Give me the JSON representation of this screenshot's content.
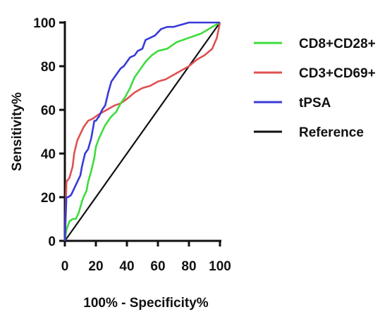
{
  "chart_data": {
    "type": "line",
    "title": "",
    "xlabel": "100% - Specificity%",
    "ylabel": "Sensitivity%",
    "xlim": [
      0,
      100
    ],
    "ylim": [
      0,
      100
    ],
    "xticks": [
      0,
      20,
      40,
      60,
      80,
      100
    ],
    "yticks": [
      0,
      20,
      40,
      60,
      80,
      100
    ],
    "grid": false,
    "legend_position": "right",
    "series": [
      {
        "name": "CD8+CD28+",
        "color": "#3ddc3d",
        "x": [
          0,
          1,
          3,
          5,
          7,
          9,
          11,
          12,
          14,
          15,
          17,
          19,
          20,
          22,
          24,
          26,
          28,
          30,
          33,
          36,
          39,
          42,
          45,
          48,
          52,
          56,
          60,
          66,
          72,
          80,
          88,
          95,
          100
        ],
        "y": [
          0,
          5,
          9,
          10,
          10,
          13,
          18,
          20,
          23,
          27,
          32,
          38,
          43,
          47,
          50,
          53,
          55,
          57,
          59,
          63,
          66,
          70,
          75,
          78,
          82,
          85,
          87,
          88,
          91,
          93,
          95,
          98,
          100
        ]
      },
      {
        "name": "CD3+CD69+",
        "color": "#e05050",
        "x": [
          0,
          1,
          3,
          5,
          6,
          8,
          10,
          12,
          15,
          18,
          22,
          27,
          32,
          36,
          40,
          45,
          50,
          55,
          60,
          65,
          70,
          75,
          80,
          85,
          90,
          95,
          98,
          100
        ],
        "y": [
          0,
          27,
          29,
          34,
          40,
          46,
          49,
          52,
          55,
          56,
          58,
          60,
          62,
          63,
          65,
          68,
          70,
          71,
          73,
          74,
          76,
          78,
          80,
          83,
          85,
          88,
          93,
          100
        ]
      },
      {
        "name": "tPSA",
        "color": "#3a3ad8",
        "x": [
          0,
          1,
          2,
          4,
          6,
          8,
          10,
          11,
          13,
          15,
          17,
          18,
          19,
          20,
          22,
          24,
          26,
          28,
          30,
          32,
          34,
          36,
          38,
          40,
          42,
          45,
          47,
          50,
          52,
          55,
          58,
          62,
          66,
          70,
          75,
          80,
          85,
          90,
          95,
          100
        ],
        "y": [
          0,
          20,
          20,
          21,
          24,
          27,
          30,
          34,
          40,
          42,
          47,
          51,
          55,
          55,
          57,
          60,
          62,
          68,
          73,
          75,
          77,
          79,
          80,
          82,
          84,
          85,
          87,
          88,
          92,
          93,
          94,
          97,
          98,
          98,
          99,
          100,
          100,
          100,
          100,
          100
        ]
      },
      {
        "name": "Reference",
        "color": "#111111",
        "x": [
          0,
          100
        ],
        "y": [
          0,
          100
        ]
      }
    ]
  }
}
